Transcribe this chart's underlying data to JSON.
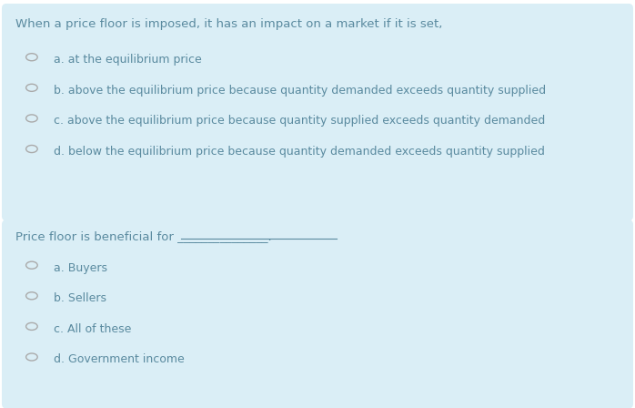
{
  "bg_color_top": "#daeef6",
  "bg_color_bottom": "#daeef6",
  "bg_color_page": "#ffffff",
  "text_color": "#5a8a9f",
  "circle_edge_color": "#aaaaaa",
  "question1": "When a price floor is imposed, it has an impact on a market if it is set,",
  "options1": [
    "a. at the equilibrium price",
    "b. above the equilibrium price because quantity demanded exceeds quantity supplied",
    "c. above the equilibrium price because quantity supplied exceeds quantity demanded",
    "d. below the equilibrium price because quantity demanded exceeds quantity supplied"
  ],
  "question2": "Price floor is beneficial for _______________.",
  "options2": [
    "a. Buyers",
    "b. Sellers",
    "c. All of these",
    "d. Government income"
  ],
  "fig_width": 6.98,
  "fig_height": 4.48,
  "dpi": 100
}
